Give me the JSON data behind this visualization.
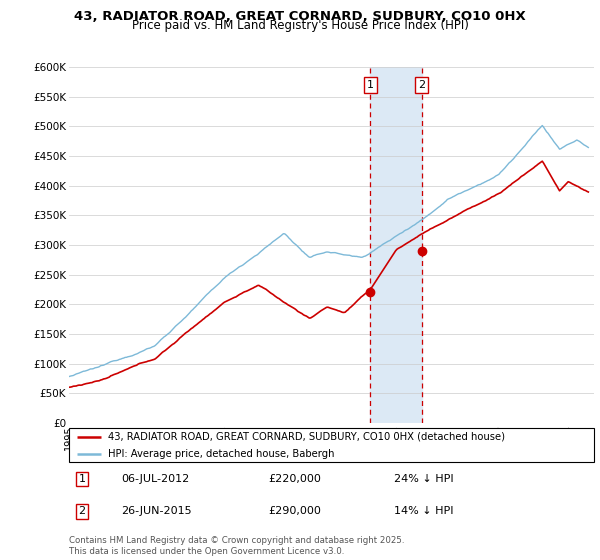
{
  "title_line1": "43, RADIATOR ROAD, GREAT CORNARD, SUDBURY, CO10 0HX",
  "title_line2": "Price paid vs. HM Land Registry's House Price Index (HPI)",
  "legend_label1": "43, RADIATOR ROAD, GREAT CORNARD, SUDBURY, CO10 0HX (detached house)",
  "legend_label2": "HPI: Average price, detached house, Babergh",
  "transaction1_date": "06-JUL-2012",
  "transaction1_price": "£220,000",
  "transaction1_hpi": "24% ↓ HPI",
  "transaction2_date": "26-JUN-2015",
  "transaction2_price": "£290,000",
  "transaction2_hpi": "14% ↓ HPI",
  "footnote": "Contains HM Land Registry data © Crown copyright and database right 2025.\nThis data is licensed under the Open Government Licence v3.0.",
  "hpi_color": "#7db9d8",
  "price_color": "#cc0000",
  "highlight_color": "#dce9f5",
  "vline_color": "#cc0000",
  "ylim": [
    0,
    600000
  ],
  "ytick_values": [
    0,
    50000,
    100000,
    150000,
    200000,
    250000,
    300000,
    350000,
    400000,
    450000,
    500000,
    550000,
    600000
  ],
  "xlim_start": 1995.0,
  "xlim_end": 2025.5,
  "transaction1_x": 2012.51,
  "transaction2_x": 2015.48,
  "transaction1_y": 220000,
  "transaction2_y": 290000
}
